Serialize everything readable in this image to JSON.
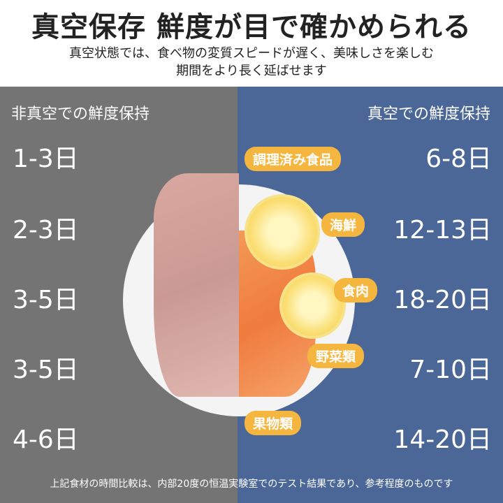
{
  "header": {
    "title": "真空保存 鮮度が目で確かめられる",
    "subtitle_line1": "真空状態では、食べ物の変質スピードが遅く、美味しさを楽しむ",
    "subtitle_line2": "期間をより長く延ばせます"
  },
  "left": {
    "heading": "非真空での鮮度保持",
    "values": [
      "1-3日",
      "2-3日",
      "3-5日",
      "3-5日",
      "4-6日"
    ]
  },
  "right": {
    "heading": "真空での鮮度保持",
    "values": [
      "6-8日",
      "12-13日",
      "18-20日",
      "7-10日",
      "14-20日"
    ]
  },
  "categories": [
    "調理済み食品",
    "海鮮",
    "食肉",
    "野菜類",
    "果物類"
  ],
  "footnote": "上記食材の時間比較は、内部20度の恒温実験室でのテスト結果であり、参考程度のものです",
  "colors": {
    "left_bg": "#747474",
    "right_bg": "#4b6797",
    "pill": "#f4b63f"
  }
}
